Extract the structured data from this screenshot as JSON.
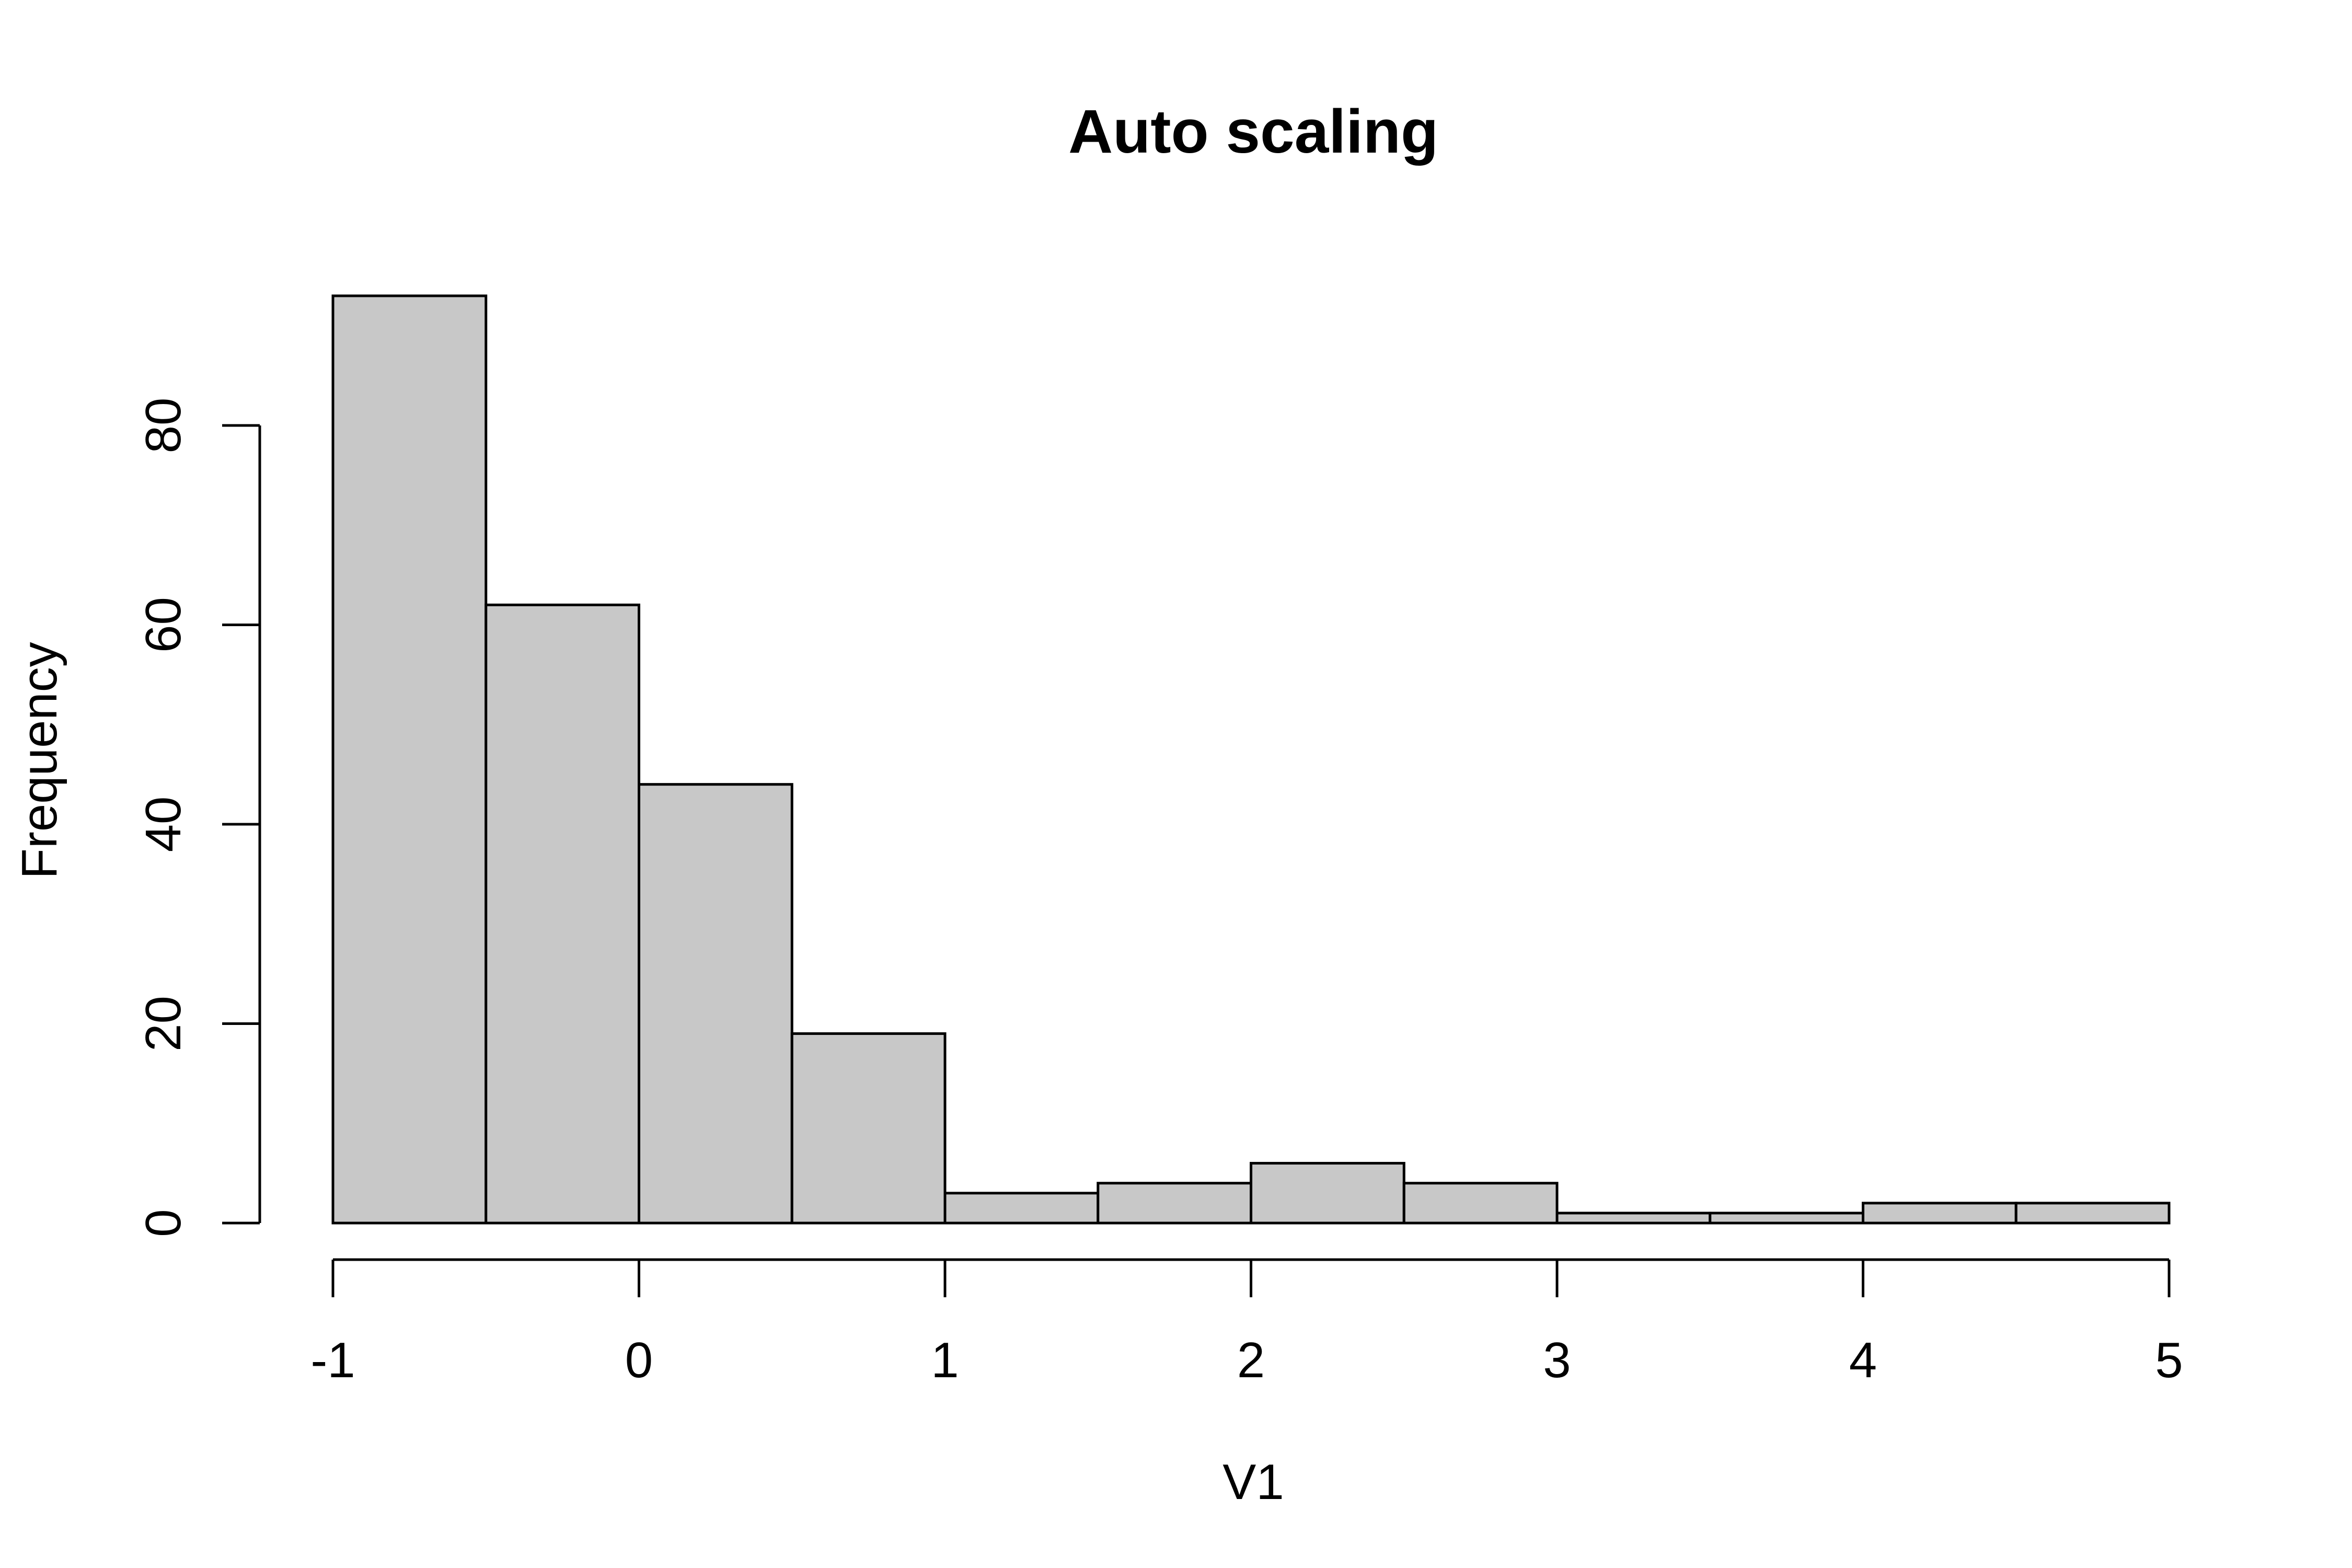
{
  "chart_data": {
    "type": "bar",
    "title": "Auto scaling",
    "xlabel": "V1",
    "ylabel": "Frequency",
    "bins": [
      {
        "start": -1.0,
        "end": -0.5,
        "value": 93
      },
      {
        "start": -0.5,
        "end": 0.0,
        "value": 62
      },
      {
        "start": 0.0,
        "end": 0.5,
        "value": 44
      },
      {
        "start": 0.5,
        "end": 1.0,
        "value": 19
      },
      {
        "start": 1.0,
        "end": 1.5,
        "value": 3
      },
      {
        "start": 1.5,
        "end": 2.0,
        "value": 4
      },
      {
        "start": 2.0,
        "end": 2.5,
        "value": 6
      },
      {
        "start": 2.5,
        "end": 3.0,
        "value": 4
      },
      {
        "start": 3.0,
        "end": 3.5,
        "value": 1
      },
      {
        "start": 3.5,
        "end": 4.0,
        "value": 1
      },
      {
        "start": 4.0,
        "end": 4.5,
        "value": 2
      },
      {
        "start": 4.5,
        "end": 5.0,
        "value": 2
      }
    ],
    "xlim": [
      -1,
      5
    ],
    "ylim": [
      0,
      93
    ],
    "x_ticks": [
      "-1",
      "0",
      "1",
      "2",
      "3",
      "4",
      "5"
    ],
    "y_ticks": [
      "0",
      "20",
      "40",
      "60",
      "80"
    ],
    "grid": false,
    "bar_color": "#c8c8c8",
    "line_color": "#000000",
    "background": "#ffffff"
  }
}
